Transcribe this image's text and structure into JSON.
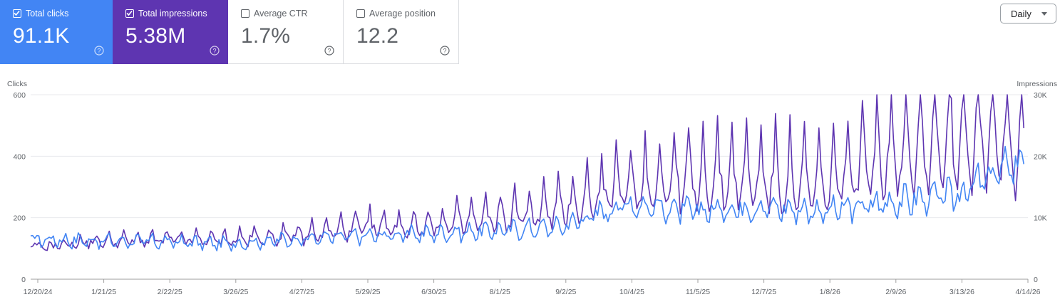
{
  "cards": [
    {
      "key": "clicks",
      "label": "Total clicks",
      "value": "91.1K",
      "checked": true,
      "color": "#4285f4"
    },
    {
      "key": "impressions",
      "label": "Total impressions",
      "value": "5.38M",
      "checked": true,
      "color": "#5e35b1"
    },
    {
      "key": "ctr",
      "label": "Average CTR",
      "value": "1.7%",
      "checked": false
    },
    {
      "key": "position",
      "label": "Average position",
      "value": "12.2",
      "checked": false
    }
  ],
  "granularity": {
    "label": "Daily"
  },
  "chart_data": {
    "type": "line",
    "left_axis": {
      "label": "Clicks",
      "ticks": [
        "0",
        "200",
        "400",
        "600"
      ],
      "range": [
        0,
        600
      ]
    },
    "right_axis": {
      "label": "Impressions",
      "ticks": [
        "0",
        "10K",
        "20K",
        "30K"
      ],
      "range": [
        0,
        30000
      ]
    },
    "x_ticks": [
      "12/20/24",
      "1/21/25",
      "2/22/25",
      "3/26/25",
      "4/27/25",
      "5/29/25",
      "6/30/25",
      "8/1/25",
      "9/2/25",
      "10/4/25",
      "11/5/25",
      "12/7/25",
      "1/8/26",
      "2/9/26",
      "3/13/26",
      "4/14/26"
    ],
    "x_range": [
      "2024-12-20",
      "2026-04-16"
    ],
    "grid": true,
    "series": [
      {
        "name": "Clicks",
        "axis": "left",
        "color": "#4285f4",
        "anchors": [
          [
            "2024-12-20",
            130
          ],
          [
            "2025-01-21",
            125
          ],
          [
            "2025-02-22",
            122
          ],
          [
            "2025-03-26",
            115
          ],
          [
            "2025-04-27",
            130
          ],
          [
            "2025-05-29",
            140
          ],
          [
            "2025-06-30",
            148
          ],
          [
            "2025-08-01",
            158
          ],
          [
            "2025-09-02",
            170
          ],
          [
            "2025-10-04",
            245
          ],
          [
            "2025-11-05",
            220
          ],
          [
            "2025-12-07",
            235
          ],
          [
            "2026-01-08",
            220
          ],
          [
            "2026-02-09",
            250
          ],
          [
            "2026-03-13",
            275
          ],
          [
            "2026-04-14",
            395
          ]
        ]
      },
      {
        "name": "Impressions",
        "axis": "right",
        "color": "#5e35b1",
        "anchors": [
          [
            "2024-12-20",
            5000
          ],
          [
            "2025-01-21",
            6000
          ],
          [
            "2025-02-22",
            6200
          ],
          [
            "2025-03-26",
            6200
          ],
          [
            "2025-04-27",
            6700
          ],
          [
            "2025-05-29",
            8000
          ],
          [
            "2025-06-30",
            8200
          ],
          [
            "2025-08-01",
            9300
          ],
          [
            "2025-09-02",
            10700
          ],
          [
            "2025-10-04",
            14000
          ],
          [
            "2025-11-05",
            15000
          ],
          [
            "2025-12-07",
            15000
          ],
          [
            "2026-01-08",
            13800
          ],
          [
            "2026-02-09",
            19000
          ],
          [
            "2026-03-13",
            21000
          ],
          [
            "2026-04-14",
            19000
          ]
        ]
      }
    ]
  }
}
